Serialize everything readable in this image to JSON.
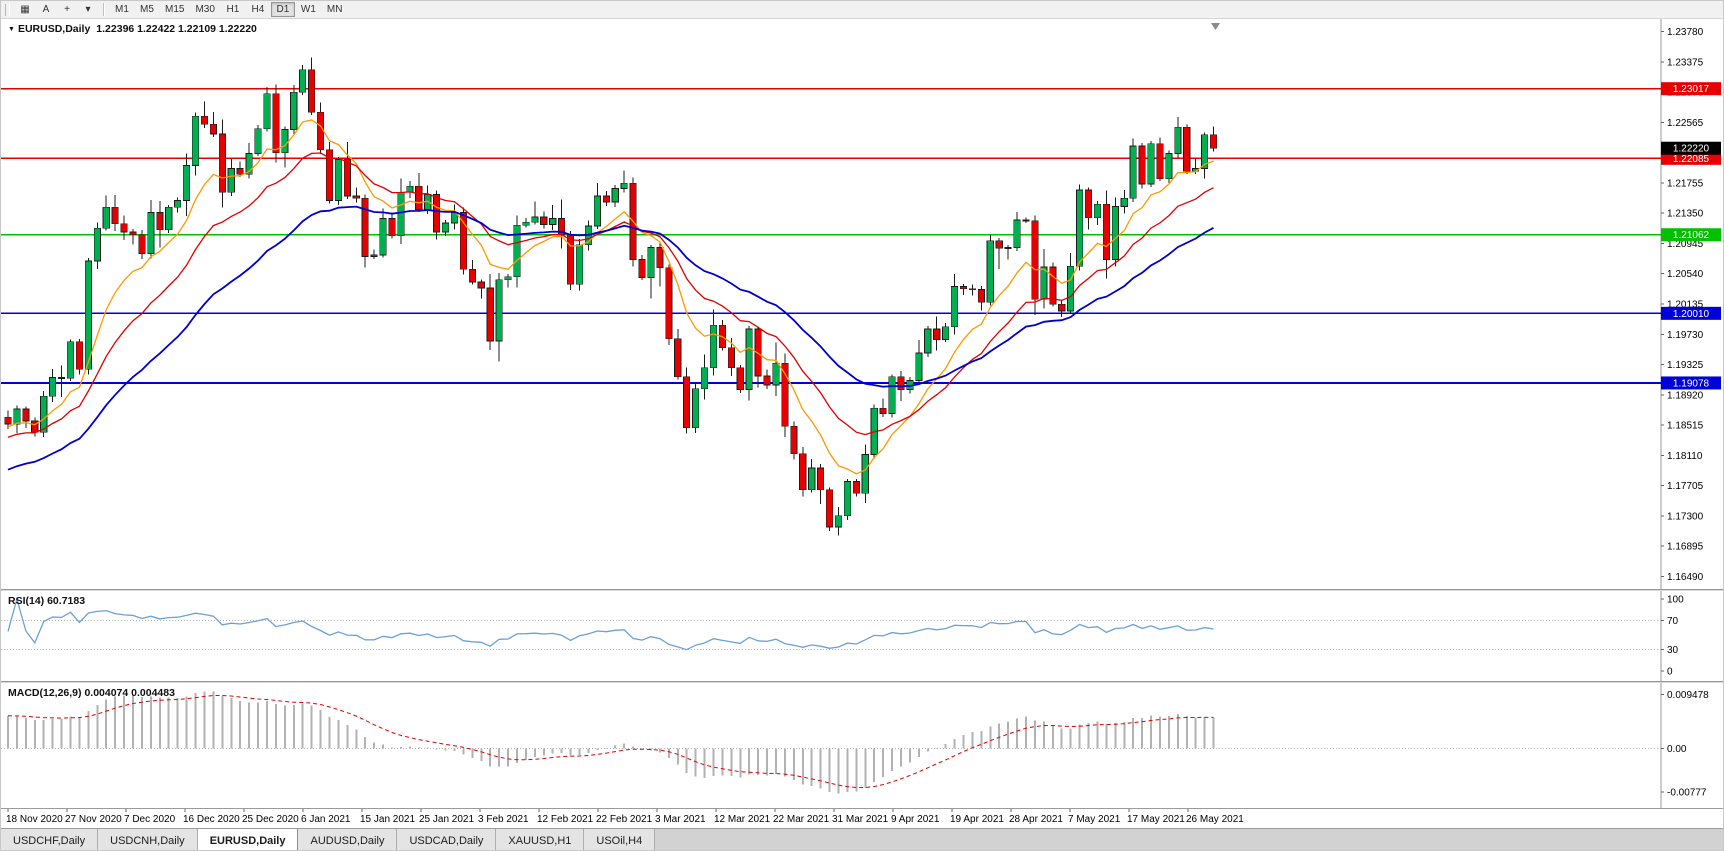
{
  "toolbar": {
    "tools": [
      {
        "id": "charts-grid",
        "glyph": "▦"
      },
      {
        "id": "text-annotation",
        "glyph": "A"
      },
      {
        "id": "crosshair",
        "glyph": "+"
      },
      {
        "id": "drawing-dropdown",
        "glyph": "▾"
      }
    ],
    "timeframes": [
      "M1",
      "M5",
      "M15",
      "M30",
      "H1",
      "H4",
      "D1",
      "W1",
      "MN"
    ],
    "active_timeframe": "D1"
  },
  "chart_header": {
    "symbol": "EURUSD,Daily",
    "ohlc": "1.22396 1.22422 1.22109 1.22220"
  },
  "tabs": {
    "items": [
      "USDCHF,Daily",
      "USDCNH,Daily",
      "EURUSD,Daily",
      "AUDUSD,Daily",
      "USDCAD,Daily",
      "XAUUSD,H1",
      "USOil,H4"
    ],
    "active": "EURUSD,Daily"
  },
  "chart_data": {
    "type": "candlestick",
    "symbol": "EURUSD",
    "timeframe": "Daily",
    "last_bar": {
      "open": "1.22396",
      "high": "1.22422",
      "low": "1.22109",
      "close": "1.22220"
    },
    "up_color": "#00b050",
    "down_color": "#e80000",
    "price_range": [
      1.1632,
      1.2395
    ],
    "price_axis_ticks": [
      "1.23780",
      "1.23375",
      "1.22970",
      "1.22565",
      "1.22160",
      "1.21755",
      "1.21350",
      "1.20945",
      "1.20540",
      "1.20135",
      "1.19730",
      "1.19325",
      "1.18920",
      "1.18515",
      "1.18110",
      "1.17705",
      "1.17300",
      "1.16895",
      "1.16490"
    ],
    "date_labels": [
      "18 Nov 2020",
      "27 Nov 2020",
      "7 Dec 2020",
      "16 Dec 2020",
      "25 Dec 2020",
      "6 Jan 2021",
      "15 Jan 2021",
      "25 Jan 2021",
      "3 Feb 2021",
      "12 Feb 2021",
      "22 Feb 2021",
      "3 Mar 2021",
      "12 Mar 2021",
      "22 Mar 2021",
      "31 Mar 2021",
      "9 Apr 2021",
      "19 Apr 2021",
      "28 Apr 2021",
      "7 May 2021",
      "17 May 2021",
      "26 May 2021"
    ],
    "first_open": 1.1862,
    "closes": [
      1.1853,
      1.1873,
      1.1857,
      1.1842,
      1.189,
      1.1915,
      1.1914,
      1.1963,
      1.1926,
      1.2071,
      1.2115,
      1.2143,
      1.2121,
      1.211,
      1.2106,
      1.2081,
      1.2136,
      1.2113,
      1.2143,
      1.2152,
      1.2199,
      1.2265,
      1.2254,
      1.2241,
      1.2163,
      1.2195,
      1.2187,
      1.2215,
      1.2248,
      1.2295,
      1.2216,
      1.2247,
      1.2297,
      1.2327,
      1.227,
      1.222,
      1.2152,
      1.2207,
      1.2158,
      1.2155,
      1.2077,
      1.2079,
      1.2128,
      1.2105,
      1.2163,
      1.2171,
      1.214,
      1.216,
      1.211,
      1.2122,
      1.2136,
      1.206,
      1.2043,
      1.2035,
      1.1964,
      1.2046,
      1.205,
      1.2119,
      1.2123,
      1.213,
      1.212,
      1.2128,
      1.2106,
      1.204,
      1.2093,
      1.2118,
      1.2158,
      1.215,
      1.2168,
      1.2175,
      1.2073,
      1.2049,
      1.2089,
      1.2062,
      1.1967,
      1.1916,
      1.1848,
      1.19,
      1.1928,
      1.1985,
      1.1955,
      1.1928,
      1.1899,
      1.198,
      1.1917,
      1.1905,
      1.1934,
      1.185,
      1.1813,
      1.1765,
      1.1794,
      1.1765,
      1.1715,
      1.173,
      1.1776,
      1.176,
      1.1812,
      1.1874,
      1.1867,
      1.1916,
      1.1899,
      1.1911,
      1.1948,
      1.198,
      1.1966,
      1.1983,
      1.2037,
      1.2034,
      1.2033,
      1.2016,
      1.2098,
      1.2088,
      1.2089,
      1.2126,
      1.2125,
      1.202,
      1.2063,
      1.2013,
      1.2004,
      1.2064,
      1.2166,
      1.2129,
      1.2147,
      1.2073,
      1.2144,
      1.2155,
      1.2225,
      1.2174,
      1.2228,
      1.2181,
      1.2215,
      1.225,
      1.2191,
      1.2195,
      1.224,
      1.2222
    ],
    "horizontal_levels": [
      {
        "price": 1.23017,
        "label": "1.23017",
        "color": "#e60000"
      },
      {
        "price": 1.22085,
        "label": "1.22085",
        "color": "#e60000"
      },
      {
        "price": 1.21062,
        "label": "1.21062",
        "color": "#00c000"
      },
      {
        "price": 1.2001,
        "label": "1.20010",
        "color": "#0000d8"
      },
      {
        "price": 1.19078,
        "label": "1.19078",
        "color": "#0000d8"
      }
    ],
    "current_price": {
      "value": 1.2222,
      "label": "1.22220",
      "badge_color": "#000000"
    },
    "moving_averages": [
      {
        "name": "fast",
        "color": "#ff9900"
      },
      {
        "name": "medium",
        "color": "#e00000"
      },
      {
        "name": "slow",
        "color": "#0000cc"
      }
    ],
    "indicators": {
      "rsi": {
        "label": "RSI(14) 60.7183",
        "period": 14,
        "value": "60.7183",
        "ticks": [
          "100",
          "70",
          "30",
          "0"
        ],
        "levels": [
          70,
          30
        ],
        "color": "#6aa1d8"
      },
      "macd": {
        "label": "MACD(12,26,9) 0.004074 0.004483",
        "values": "0.004074 0.004483",
        "ticks": [
          "0.009478",
          "0.00",
          "-0.00777"
        ],
        "hist_color": "#b2b2b2",
        "signal_color": "#e00000"
      }
    }
  }
}
